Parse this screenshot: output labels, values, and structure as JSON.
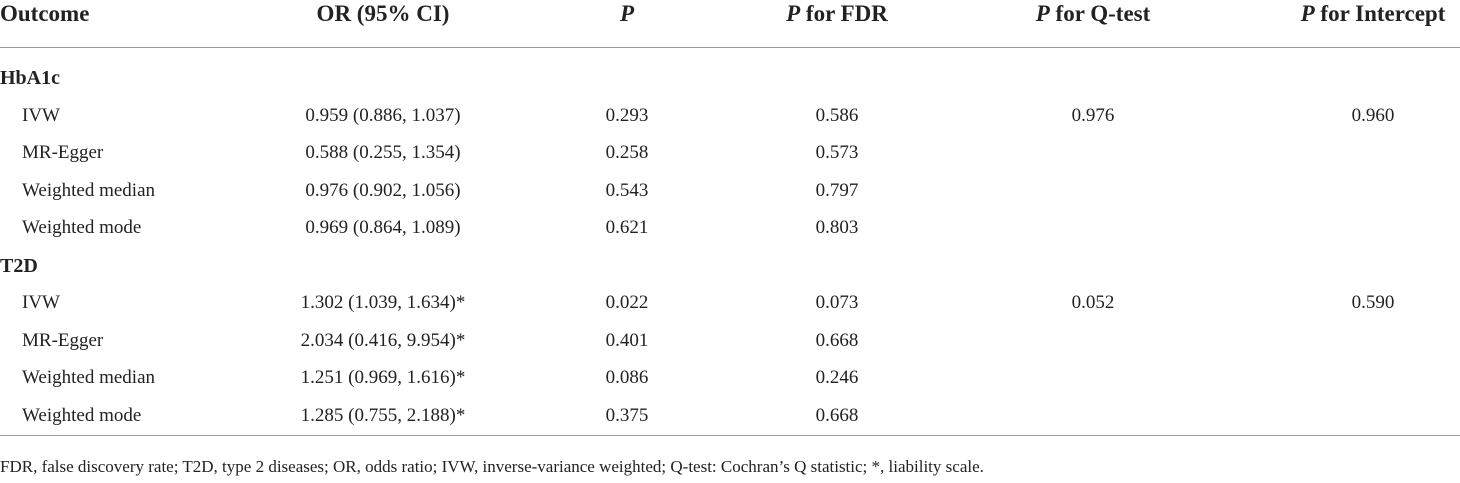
{
  "table": {
    "headers": [
      {
        "text": "Outcome"
      },
      {
        "text": "OR (95% CI)"
      },
      {
        "italic": "P"
      },
      {
        "italic": "P",
        "text": "for FDR"
      },
      {
        "italic": "P",
        "text": "for Q-test"
      },
      {
        "italic": "P",
        "text": "for Intercept"
      }
    ],
    "groups": [
      {
        "label": "HbA1c",
        "rows": [
          [
            "IVW",
            "0.959 (0.886, 1.037)",
            "0.293",
            "0.586",
            "0.976",
            "0.960"
          ],
          [
            "MR-Egger",
            "0.588 (0.255, 1.354)",
            "0.258",
            "0.573",
            null,
            null
          ],
          [
            "Weighted median",
            "0.976 (0.902, 1.056)",
            "0.543",
            "0.797",
            null,
            null
          ],
          [
            "Weighted mode",
            "0.969 (0.864, 1.089)",
            "0.621",
            "0.803",
            null,
            null
          ]
        ]
      },
      {
        "label": "T2D",
        "rows": [
          [
            "IVW",
            "1.302 (1.039, 1.634)*",
            "0.022",
            "0.073",
            "0.052",
            "0.590"
          ],
          [
            "MR-Egger",
            "2.034 (0.416, 9.954)*",
            "0.401",
            "0.668",
            null,
            null
          ],
          [
            "Weighted median",
            "1.251 (0.969, 1.616)*",
            "0.086",
            "0.246",
            null,
            null
          ],
          [
            "Weighted mode",
            "1.285 (0.755, 2.188)*",
            "0.375",
            "0.668",
            null,
            null
          ]
        ]
      }
    ],
    "footnote": "FDR, false discovery rate; T2D, type 2 diseases; OR, odds ratio; IVW, inverse-variance weighted; Q-test: Cochran’s Q statistic; *, liability scale."
  }
}
